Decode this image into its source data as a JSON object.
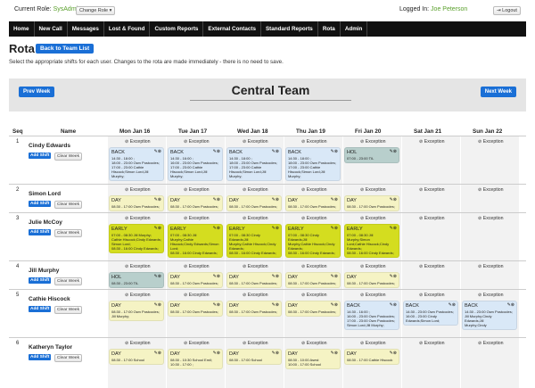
{
  "top": {
    "current_role_label": "Current Role:",
    "current_role_value": "SysAdmin",
    "change_role": "Change Role ▾",
    "logged_in_label": "Logged In:",
    "logged_in_user": "Joe Peterson",
    "logout": "⇥ Logout"
  },
  "nav": [
    "Home",
    "New Call",
    "Messages",
    "Lost & Found",
    "Custom Reports",
    "External Contacts",
    "Standard Reports",
    "Rota",
    "Admin"
  ],
  "page": {
    "title": "Rota",
    "back_button": "Back to Team List",
    "instructions": "Select the appropriate shifts for each user. Changes to the rota are made immediately - there is no need to save.",
    "prev_week": "Prev Week",
    "next_week": "Next Week",
    "team": "Central Team"
  },
  "table": {
    "seq_header": "Seq",
    "name_header": "Name",
    "days": [
      "Mon Jan 16",
      "Tue Jan 17",
      "Wed Jan 18",
      "Thu Jan 19",
      "Fri Jan 20",
      "Sat Jan 21",
      "Sun Jan 22"
    ],
    "exception_label": "⊘ Exception",
    "add_shift": "Add Shift",
    "clear_week": "Clear Week",
    "rows": [
      {
        "seq": "1",
        "name": "Cindy Edwards",
        "cells": [
          {
            "name": "BACK",
            "lines": [
              "14:30 - 18:00 ;",
              "18:00 - 23:00 Own Postcodes;",
              "17:00 - 23:00 Cathie",
              "Hiscock;Simon Lord;Jill Murphy;"
            ],
            "color": "blue"
          },
          {
            "name": "BACK",
            "lines": [
              "14:30 - 16:00 ;",
              "16:00 - 23:00 Own Postcodes;",
              "17:00 - 23:00 Cathie",
              "Hiscock;Simon Lord;Jill Murphy;"
            ],
            "color": "blue"
          },
          {
            "name": "BACK",
            "lines": [
              "14:30 - 18:00 ;",
              "18:00 - 23:00 Own Postcodes;",
              "17:00 - 23:00 Cathie",
              "Hiscock;Simon Lord;Jill Murphy;"
            ],
            "color": "blue"
          },
          {
            "name": "BACK",
            "lines": [
              "14:30 - 18:00 ;",
              "18:00 - 23:00 Own Postcodes;",
              "17:00 - 23:00 Cathie",
              "Hiscock;Simon Lord;Jill Murphy;"
            ],
            "color": "blue"
          },
          {
            "name": "HOL",
            "lines": [
              "07:00 - 23:00 TIL"
            ],
            "color": "teal"
          },
          null,
          null
        ]
      },
      {
        "seq": "2",
        "name": "Simon Lord",
        "cells": [
          {
            "name": "DAY",
            "lines": [
              "08:30 - 17:00 Own Postcodes;"
            ],
            "color": "yellow"
          },
          {
            "name": "DAY",
            "lines": [
              "08:30 - 17:00 Own Postcodes;"
            ],
            "color": "yellow"
          },
          {
            "name": "DAY",
            "lines": [
              "08:30 - 17:00 Own Postcodes;"
            ],
            "color": "yellow"
          },
          {
            "name": "DAY",
            "lines": [
              "08:30 - 17:00 Own Postcodes;"
            ],
            "color": "yellow"
          },
          {
            "name": "DAY",
            "lines": [
              "08:30 - 17:00 Own Postcodes;"
            ],
            "color": "yellow"
          },
          null,
          null
        ]
      },
      {
        "seq": "3",
        "name": "Julie McCoy",
        "cells": [
          {
            "name": "EARLY",
            "lines": [
              "07:00 - 08:30 Jill Murphy;",
              "Cathie Hiscock;Cindy Edwards;",
              "Simon Lord;",
              "08:30 - 16:00 Cindy Edwards;"
            ],
            "color": "lime"
          },
          {
            "name": "EARLY",
            "lines": [
              "07:00 - 08:30 Jill Murphy;Cathie",
              "Hiscock;Cindy Edwards;Simon",
              "Lord;",
              "08:30 - 16:00 Cindy Edwards;"
            ],
            "color": "lime"
          },
          {
            "name": "EARLY",
            "lines": [
              "07:00 - 08:30 Cindy Edwards;Jill",
              "Murphy;Cathie Hiscock;Cindy",
              "Edwards;",
              "08:30 - 16:00 Cindy Edwards;"
            ],
            "color": "lime"
          },
          {
            "name": "EARLY",
            "lines": [
              "07:00 - 08:30 Cindy Edwards;Jill",
              "Murphy;Cathie Hiscock;Cindy",
              "Edwards;",
              "08:30 - 16:00 Cindy Edwards;"
            ],
            "color": "lime"
          },
          {
            "name": "EARLY",
            "lines": [
              "07:00 - 08:30 Jill Murphy;Simon",
              "Lord;Cathie Hiscock;Cindy",
              "Edwards;",
              "08:30 - 16:00 Cindy Edwards;"
            ],
            "color": "lime"
          },
          null,
          null
        ]
      },
      {
        "seq": "4",
        "name": "Jill Murphy",
        "cells": [
          {
            "name": "HOL",
            "lines": [
              "08:30 - 23:00 TIL"
            ],
            "color": "teal"
          },
          {
            "name": "DAY",
            "lines": [
              "08:30 - 17:00 Own Postcodes;"
            ],
            "color": "yellow"
          },
          {
            "name": "DAY",
            "lines": [
              "08:30 - 17:00 Own Postcodes;"
            ],
            "color": "yellow"
          },
          {
            "name": "DAY",
            "lines": [
              "08:30 - 17:00 Own Postcodes;"
            ],
            "color": "yellow"
          },
          {
            "name": "DAY",
            "lines": [
              "08:30 - 17:00 Own Postcodes;"
            ],
            "color": "yellow"
          },
          null,
          null
        ]
      },
      {
        "seq": "5",
        "name": "Cathie Hiscock",
        "cells": [
          {
            "name": "DAY",
            "lines": [
              "08:30 - 17:00 Own Postcodes;",
              "Jill Murphy;"
            ],
            "color": "yellow"
          },
          {
            "name": "DAY",
            "lines": [
              "08:30 - 17:00 Own Postcodes;"
            ],
            "color": "yellow"
          },
          {
            "name": "DAY",
            "lines": [
              "08:30 - 17:00 Own Postcodes;"
            ],
            "color": "yellow"
          },
          {
            "name": "DAY",
            "lines": [
              "08:30 - 17:00 Own Postcodes;"
            ],
            "color": "yellow"
          },
          {
            "name": "BACK",
            "lines": [
              "14:30 - 16:00 ;",
              "16:00 - 23:00 Own Postcodes;",
              "17:00 - 23:00 Own Postcodes;",
              "Simon Lord;Jill Murphy;"
            ],
            "color": "blue"
          },
          {
            "name": "BACK",
            "lines": [
              "14:30 - 23:00 Own Postcodes;",
              "16:00 - 23:00 Cindy",
              "Edwards;Simon Lord;"
            ],
            "color": "blue"
          },
          {
            "name": "BACK",
            "lines": [
              "14:30 - 23:00 Own Postcodes;",
              "Jill Murphy;Cindy",
              "Edwards;Jill",
              "Murphy;Cindy"
            ],
            "color": "blue"
          }
        ]
      },
      {
        "seq": "6",
        "name": "Katheryn Taylor",
        "cells": [
          {
            "name": "DAY",
            "lines": [
              "08:30 - 17:00 School"
            ],
            "color": "yellow"
          },
          {
            "name": "DAY",
            "lines": [
              "08:30 - 10:30 School Emil;",
              "10:30 - 17:00 ;"
            ],
            "color": "yellow"
          },
          {
            "name": "DAY",
            "lines": [
              "08:30 - 17:00 School"
            ],
            "color": "yellow"
          },
          {
            "name": "DAY",
            "lines": [
              "08:30 - 10:00 Asest",
              "10:00 - 17:00 School"
            ],
            "color": "yellow"
          },
          {
            "name": "DAY",
            "lines": [
              "08:30 - 17:00 Cathie Hiscock"
            ],
            "color": "yellow"
          },
          null,
          null
        ]
      }
    ]
  }
}
